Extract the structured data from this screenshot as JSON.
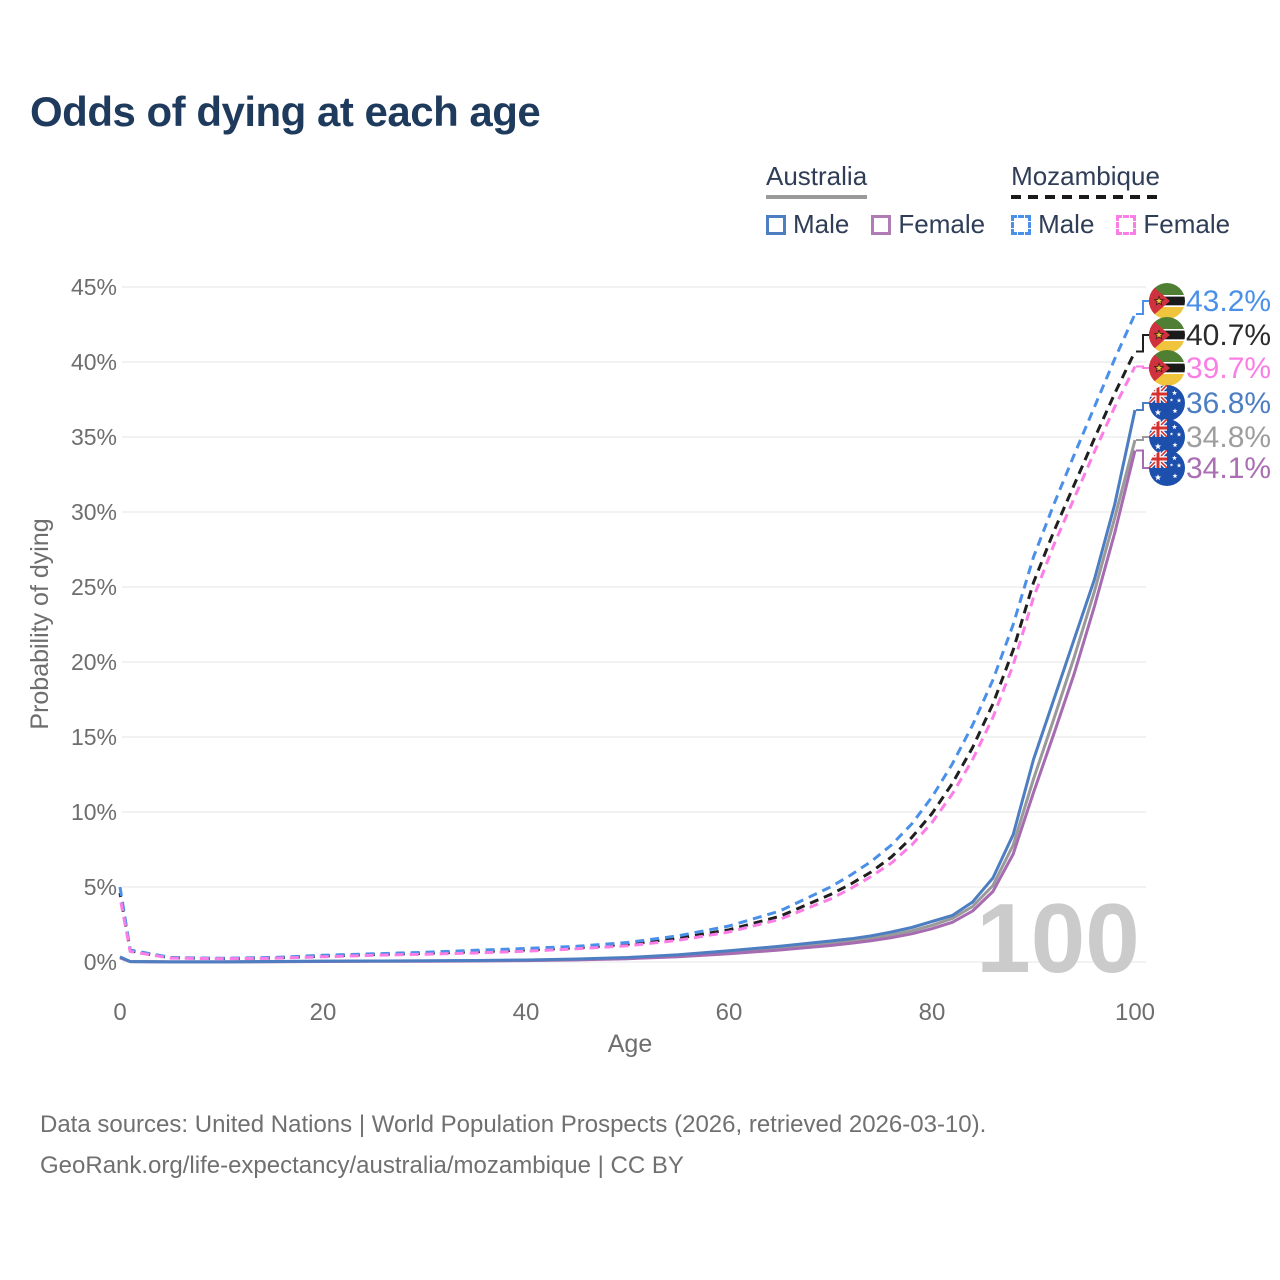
{
  "page": {
    "title": "Odds of dying at each age",
    "watermark": "100",
    "footer_line1": "Data sources: United Nations | World Population Prospects (2026, retrieved 2026-03-10).",
    "footer_line2": "GeoRank.org/life-expectancy/australia/mozambique | CC BY"
  },
  "legend": {
    "groups": [
      {
        "label": "Australia",
        "line_style": "solid",
        "underline_color": "#9a9a9a",
        "items": [
          {
            "label": "Male",
            "color": "#4d7ec1",
            "dash": false
          },
          {
            "label": "Female",
            "color": "#b07cb4",
            "dash": false
          }
        ]
      },
      {
        "label": "Mozambique",
        "line_style": "dashed",
        "underline_color": "#1a1a1a",
        "items": [
          {
            "label": "Male",
            "color": "#4a90e8",
            "dash": true
          },
          {
            "label": "Female",
            "color": "#fb7ee6",
            "dash": true
          }
        ]
      }
    ]
  },
  "chart_data": {
    "type": "line",
    "title": "Odds of dying at each age",
    "xlabel": "Age",
    "ylabel": "Probability of dying",
    "xlim": [
      0,
      100
    ],
    "ylim": [
      0,
      45
    ],
    "grid": "horizontal",
    "x_ticks": [
      0,
      20,
      40,
      60,
      80,
      100
    ],
    "y_ticks": [
      "0%",
      "5%",
      "10%",
      "15%",
      "20%",
      "25%",
      "30%",
      "35%",
      "40%",
      "45%"
    ],
    "x": [
      0,
      1,
      5,
      10,
      15,
      20,
      25,
      30,
      35,
      40,
      45,
      50,
      55,
      60,
      65,
      70,
      72,
      74,
      76,
      78,
      80,
      82,
      84,
      86,
      88,
      90,
      92,
      94,
      96,
      98,
      100
    ],
    "series": [
      {
        "id": "mozambique-male",
        "country": "Mozambique",
        "sex": "Male",
        "name": "Mozambique Male",
        "color": "#4a90e8",
        "dash": true,
        "end_label": "43.2%",
        "label_color": "#4a90e8",
        "flag": "mozambique",
        "values": [
          5.0,
          0.8,
          0.3,
          0.25,
          0.3,
          0.45,
          0.55,
          0.65,
          0.78,
          0.9,
          1.05,
          1.3,
          1.75,
          2.4,
          3.4,
          5.0,
          5.8,
          6.7,
          7.8,
          9.2,
          11.0,
          13.2,
          15.8,
          18.8,
          22.5,
          27.0,
          30.5,
          33.8,
          37.0,
          40.2,
          43.2
        ]
      },
      {
        "id": "mozambique-both",
        "country": "Mozambique",
        "sex": "Both sexes",
        "name": "Mozambique Both sexes",
        "color": "#1f1f1f",
        "dash": true,
        "end_label": "40.7%",
        "label_color": "#2b2b2b",
        "flag": "mozambique",
        "values": [
          4.6,
          0.75,
          0.28,
          0.23,
          0.27,
          0.4,
          0.5,
          0.58,
          0.68,
          0.8,
          0.95,
          1.18,
          1.58,
          2.15,
          3.05,
          4.5,
          5.2,
          6.0,
          7.0,
          8.3,
          9.9,
          11.9,
          14.3,
          17.2,
          20.8,
          25.3,
          28.7,
          31.8,
          34.9,
          37.9,
          40.7
        ]
      },
      {
        "id": "mozambique-female",
        "country": "Mozambique",
        "sex": "Female",
        "name": "Mozambique Female",
        "color": "#fb7ee6",
        "dash": true,
        "end_label": "39.7%",
        "label_color": "#fb7ee6",
        "flag": "mozambique",
        "values": [
          4.3,
          0.7,
          0.26,
          0.22,
          0.25,
          0.35,
          0.45,
          0.52,
          0.6,
          0.72,
          0.88,
          1.08,
          1.45,
          2.0,
          2.85,
          4.2,
          4.9,
          5.7,
          6.6,
          7.8,
          9.3,
          11.2,
          13.5,
          16.3,
          19.8,
          24.3,
          27.8,
          30.9,
          34.0,
          37.0,
          39.7
        ]
      },
      {
        "id": "australia-male",
        "country": "Australia",
        "sex": "Male",
        "name": "Australia Male",
        "color": "#4d7ec1",
        "dash": false,
        "end_label": "36.8%",
        "label_color": "#4d7ec1",
        "flag": "australia",
        "values": [
          0.35,
          0.03,
          0.01,
          0.01,
          0.03,
          0.06,
          0.07,
          0.08,
          0.1,
          0.13,
          0.2,
          0.3,
          0.48,
          0.75,
          1.05,
          1.4,
          1.55,
          1.75,
          2.0,
          2.3,
          2.7,
          3.1,
          4.0,
          5.6,
          8.5,
          13.5,
          17.5,
          21.5,
          25.5,
          30.5,
          36.8
        ]
      },
      {
        "id": "australia-both",
        "country": "Australia",
        "sex": "Both sexes",
        "name": "Australia Both sexes",
        "color": "#9a9a9a",
        "dash": false,
        "end_label": "34.8%",
        "label_color": "#9e9e9e",
        "flag": "australia",
        "values": [
          0.3,
          0.027,
          0.01,
          0.01,
          0.025,
          0.05,
          0.06,
          0.07,
          0.09,
          0.11,
          0.17,
          0.26,
          0.42,
          0.65,
          0.92,
          1.25,
          1.4,
          1.58,
          1.8,
          2.08,
          2.45,
          2.9,
          3.7,
          5.1,
          7.8,
          12.2,
          16.2,
          20.3,
          24.7,
          29.6,
          34.8
        ]
      },
      {
        "id": "australia-female",
        "country": "Australia",
        "sex": "Female",
        "name": "Australia Female",
        "color": "#a66bb0",
        "dash": false,
        "end_label": "34.1%",
        "label_color": "#aa6fb2",
        "flag": "australia",
        "values": [
          0.28,
          0.025,
          0.008,
          0.008,
          0.02,
          0.035,
          0.045,
          0.055,
          0.07,
          0.09,
          0.14,
          0.22,
          0.35,
          0.55,
          0.8,
          1.1,
          1.25,
          1.42,
          1.62,
          1.88,
          2.22,
          2.65,
          3.4,
          4.7,
          7.2,
          11.3,
          15.2,
          19.2,
          23.7,
          28.6,
          34.1
        ]
      }
    ]
  }
}
